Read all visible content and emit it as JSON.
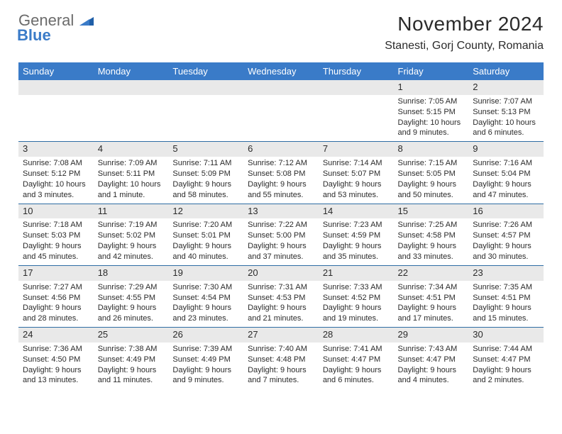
{
  "logo": {
    "general": "General",
    "blue": "Blue"
  },
  "header": {
    "month_title": "November 2024",
    "location": "Stanesti, Gorj County, Romania"
  },
  "colors": {
    "header_blue": "#3a7bc8",
    "daynum_bg": "#e9e9e9",
    "row_divider": "#2e6da4",
    "text": "#2b2b2b",
    "logo_gray": "#6b6b6b",
    "logo_blue": "#3a7bc8",
    "background": "#ffffff"
  },
  "calendar": {
    "day_headers": [
      "Sunday",
      "Monday",
      "Tuesday",
      "Wednesday",
      "Thursday",
      "Friday",
      "Saturday"
    ],
    "weeks": [
      [
        {
          "blank": true
        },
        {
          "blank": true
        },
        {
          "blank": true
        },
        {
          "blank": true
        },
        {
          "blank": true
        },
        {
          "num": "1",
          "sunrise": "Sunrise: 7:05 AM",
          "sunset": "Sunset: 5:15 PM",
          "dl1": "Daylight: 10 hours",
          "dl2": "and 9 minutes."
        },
        {
          "num": "2",
          "sunrise": "Sunrise: 7:07 AM",
          "sunset": "Sunset: 5:13 PM",
          "dl1": "Daylight: 10 hours",
          "dl2": "and 6 minutes."
        }
      ],
      [
        {
          "num": "3",
          "sunrise": "Sunrise: 7:08 AM",
          "sunset": "Sunset: 5:12 PM",
          "dl1": "Daylight: 10 hours",
          "dl2": "and 3 minutes."
        },
        {
          "num": "4",
          "sunrise": "Sunrise: 7:09 AM",
          "sunset": "Sunset: 5:11 PM",
          "dl1": "Daylight: 10 hours",
          "dl2": "and 1 minute."
        },
        {
          "num": "5",
          "sunrise": "Sunrise: 7:11 AM",
          "sunset": "Sunset: 5:09 PM",
          "dl1": "Daylight: 9 hours",
          "dl2": "and 58 minutes."
        },
        {
          "num": "6",
          "sunrise": "Sunrise: 7:12 AM",
          "sunset": "Sunset: 5:08 PM",
          "dl1": "Daylight: 9 hours",
          "dl2": "and 55 minutes."
        },
        {
          "num": "7",
          "sunrise": "Sunrise: 7:14 AM",
          "sunset": "Sunset: 5:07 PM",
          "dl1": "Daylight: 9 hours",
          "dl2": "and 53 minutes."
        },
        {
          "num": "8",
          "sunrise": "Sunrise: 7:15 AM",
          "sunset": "Sunset: 5:05 PM",
          "dl1": "Daylight: 9 hours",
          "dl2": "and 50 minutes."
        },
        {
          "num": "9",
          "sunrise": "Sunrise: 7:16 AM",
          "sunset": "Sunset: 5:04 PM",
          "dl1": "Daylight: 9 hours",
          "dl2": "and 47 minutes."
        }
      ],
      [
        {
          "num": "10",
          "sunrise": "Sunrise: 7:18 AM",
          "sunset": "Sunset: 5:03 PM",
          "dl1": "Daylight: 9 hours",
          "dl2": "and 45 minutes."
        },
        {
          "num": "11",
          "sunrise": "Sunrise: 7:19 AM",
          "sunset": "Sunset: 5:02 PM",
          "dl1": "Daylight: 9 hours",
          "dl2": "and 42 minutes."
        },
        {
          "num": "12",
          "sunrise": "Sunrise: 7:20 AM",
          "sunset": "Sunset: 5:01 PM",
          "dl1": "Daylight: 9 hours",
          "dl2": "and 40 minutes."
        },
        {
          "num": "13",
          "sunrise": "Sunrise: 7:22 AM",
          "sunset": "Sunset: 5:00 PM",
          "dl1": "Daylight: 9 hours",
          "dl2": "and 37 minutes."
        },
        {
          "num": "14",
          "sunrise": "Sunrise: 7:23 AM",
          "sunset": "Sunset: 4:59 PM",
          "dl1": "Daylight: 9 hours",
          "dl2": "and 35 minutes."
        },
        {
          "num": "15",
          "sunrise": "Sunrise: 7:25 AM",
          "sunset": "Sunset: 4:58 PM",
          "dl1": "Daylight: 9 hours",
          "dl2": "and 33 minutes."
        },
        {
          "num": "16",
          "sunrise": "Sunrise: 7:26 AM",
          "sunset": "Sunset: 4:57 PM",
          "dl1": "Daylight: 9 hours",
          "dl2": "and 30 minutes."
        }
      ],
      [
        {
          "num": "17",
          "sunrise": "Sunrise: 7:27 AM",
          "sunset": "Sunset: 4:56 PM",
          "dl1": "Daylight: 9 hours",
          "dl2": "and 28 minutes."
        },
        {
          "num": "18",
          "sunrise": "Sunrise: 7:29 AM",
          "sunset": "Sunset: 4:55 PM",
          "dl1": "Daylight: 9 hours",
          "dl2": "and 26 minutes."
        },
        {
          "num": "19",
          "sunrise": "Sunrise: 7:30 AM",
          "sunset": "Sunset: 4:54 PM",
          "dl1": "Daylight: 9 hours",
          "dl2": "and 23 minutes."
        },
        {
          "num": "20",
          "sunrise": "Sunrise: 7:31 AM",
          "sunset": "Sunset: 4:53 PM",
          "dl1": "Daylight: 9 hours",
          "dl2": "and 21 minutes."
        },
        {
          "num": "21",
          "sunrise": "Sunrise: 7:33 AM",
          "sunset": "Sunset: 4:52 PM",
          "dl1": "Daylight: 9 hours",
          "dl2": "and 19 minutes."
        },
        {
          "num": "22",
          "sunrise": "Sunrise: 7:34 AM",
          "sunset": "Sunset: 4:51 PM",
          "dl1": "Daylight: 9 hours",
          "dl2": "and 17 minutes."
        },
        {
          "num": "23",
          "sunrise": "Sunrise: 7:35 AM",
          "sunset": "Sunset: 4:51 PM",
          "dl1": "Daylight: 9 hours",
          "dl2": "and 15 minutes."
        }
      ],
      [
        {
          "num": "24",
          "sunrise": "Sunrise: 7:36 AM",
          "sunset": "Sunset: 4:50 PM",
          "dl1": "Daylight: 9 hours",
          "dl2": "and 13 minutes."
        },
        {
          "num": "25",
          "sunrise": "Sunrise: 7:38 AM",
          "sunset": "Sunset: 4:49 PM",
          "dl1": "Daylight: 9 hours",
          "dl2": "and 11 minutes."
        },
        {
          "num": "26",
          "sunrise": "Sunrise: 7:39 AM",
          "sunset": "Sunset: 4:49 PM",
          "dl1": "Daylight: 9 hours",
          "dl2": "and 9 minutes."
        },
        {
          "num": "27",
          "sunrise": "Sunrise: 7:40 AM",
          "sunset": "Sunset: 4:48 PM",
          "dl1": "Daylight: 9 hours",
          "dl2": "and 7 minutes."
        },
        {
          "num": "28",
          "sunrise": "Sunrise: 7:41 AM",
          "sunset": "Sunset: 4:47 PM",
          "dl1": "Daylight: 9 hours",
          "dl2": "and 6 minutes."
        },
        {
          "num": "29",
          "sunrise": "Sunrise: 7:43 AM",
          "sunset": "Sunset: 4:47 PM",
          "dl1": "Daylight: 9 hours",
          "dl2": "and 4 minutes."
        },
        {
          "num": "30",
          "sunrise": "Sunrise: 7:44 AM",
          "sunset": "Sunset: 4:47 PM",
          "dl1": "Daylight: 9 hours",
          "dl2": "and 2 minutes."
        }
      ]
    ]
  }
}
